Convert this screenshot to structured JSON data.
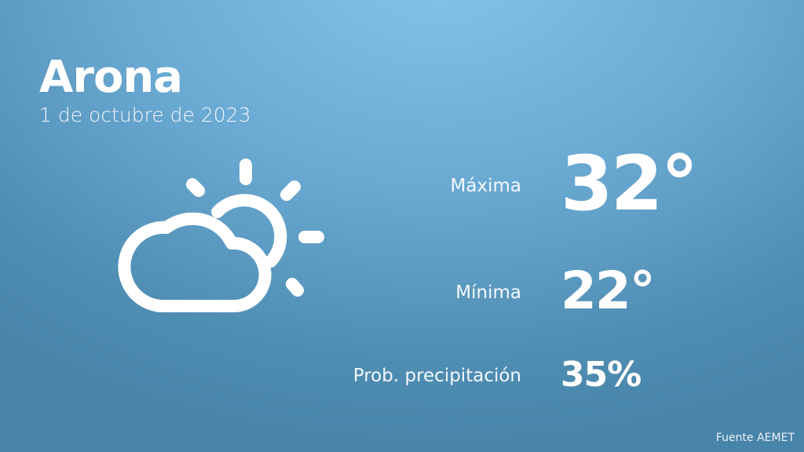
{
  "header": {
    "city": "Arona",
    "date": "1 de octubre de 2023"
  },
  "weather": {
    "icon": "partly-cloudy-icon",
    "max_label": "Máxima",
    "max_value": "32°",
    "min_label": "Mínima",
    "min_value": "22°",
    "precip_label": "Prob. precipitación",
    "precip_value": "35%"
  },
  "footer": {
    "source": "Fuente AEMET"
  },
  "colors": {
    "background_top": "#86c3e8",
    "background_bottom": "#4884a8",
    "text": "#ffffff"
  }
}
